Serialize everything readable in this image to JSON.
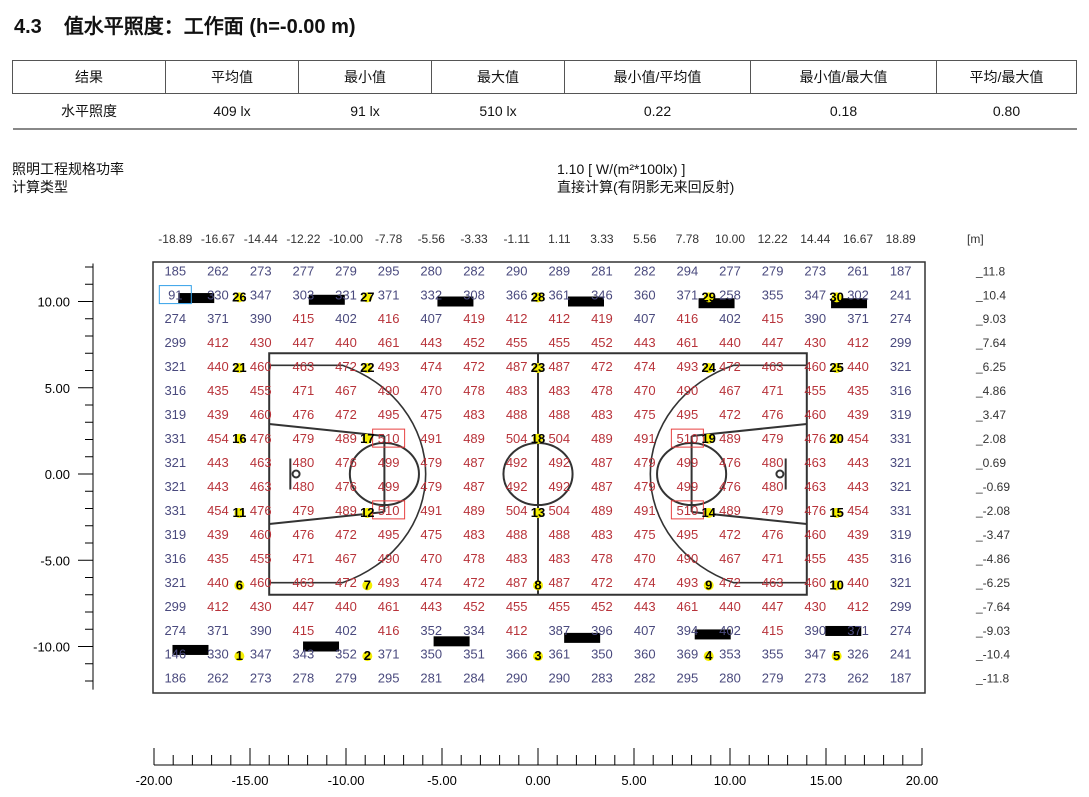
{
  "header": {
    "section": "4.3",
    "title": "值水平照度：工作面 (h=-0.00 m)"
  },
  "results": {
    "headers": [
      "结果",
      "平均值",
      "最小值",
      "最大值",
      "最小值/平均值",
      "最小值/最大值",
      "平均/最大值"
    ],
    "row": [
      "水平照度",
      "409 lx",
      "91 lx",
      "510 lx",
      "0.22",
      "0.18",
      "0.80"
    ]
  },
  "info": {
    "power_label": "照明工程规格功率",
    "power_value": "1.10 [ W/(m²*100lx) ]",
    "calc_label": "计算类型",
    "calc_value": "直接计算(有阴影无来回反射)"
  },
  "chart_data": {
    "type": "table",
    "unit": "[m]",
    "top_ticks": [
      "-18.89",
      "-16.67",
      "-14.44",
      "-12.22",
      "-10.00",
      "-7.78",
      "-5.56",
      "-3.33",
      "-1.11",
      "1.11",
      "3.33",
      "5.56",
      "7.78",
      "10.00",
      "12.22",
      "14.44",
      "16.67",
      "18.89"
    ],
    "right_ticks": [
      "11.8",
      "10.4",
      "9.03",
      "7.64",
      "6.25",
      "4.86",
      "3.47",
      "2.08",
      "0.69",
      "-0.69",
      "-2.08",
      "-3.47",
      "-4.86",
      "-6.25",
      "-7.64",
      "-9.03",
      "-10.4",
      "-11.8"
    ],
    "left_ticks": [
      "10.00",
      "5.00",
      "0.00",
      "-5.00",
      "-10.00"
    ],
    "bottom_ticks": [
      "-20.00",
      "-15.00",
      "-10.00",
      "-5.00",
      "0.00",
      "5.00",
      "10.00",
      "15.00",
      "20.00"
    ],
    "grid": [
      [
        185,
        262,
        273,
        277,
        279,
        295,
        280,
        282,
        290,
        289,
        281,
        282,
        294,
        277,
        279,
        273,
        261,
        187
      ],
      [
        91,
        330,
        347,
        303,
        331,
        371,
        332,
        308,
        366,
        361,
        346,
        360,
        371,
        258,
        355,
        347,
        302,
        241
      ],
      [
        274,
        371,
        390,
        415,
        402,
        416,
        407,
        419,
        412,
        412,
        419,
        407,
        416,
        402,
        415,
        390,
        371,
        274
      ],
      [
        299,
        412,
        430,
        447,
        440,
        461,
        443,
        452,
        455,
        455,
        452,
        443,
        461,
        440,
        447,
        430,
        412,
        299
      ],
      [
        321,
        440,
        460,
        463,
        472,
        493,
        474,
        472,
        487,
        487,
        472,
        474,
        493,
        472,
        463,
        460,
        440,
        321
      ],
      [
        316,
        435,
        455,
        471,
        467,
        490,
        470,
        478,
        483,
        483,
        478,
        470,
        490,
        467,
        471,
        455,
        435,
        316
      ],
      [
        319,
        439,
        460,
        476,
        472,
        495,
        475,
        483,
        488,
        488,
        483,
        475,
        495,
        472,
        476,
        460,
        439,
        319
      ],
      [
        331,
        454,
        476,
        479,
        489,
        510,
        491,
        489,
        504,
        504,
        489,
        491,
        510,
        489,
        479,
        476,
        454,
        331
      ],
      [
        321,
        443,
        463,
        480,
        476,
        499,
        479,
        487,
        492,
        492,
        487,
        479,
        499,
        476,
        480,
        463,
        443,
        321
      ],
      [
        321,
        443,
        463,
        480,
        476,
        499,
        479,
        487,
        492,
        492,
        487,
        479,
        499,
        476,
        480,
        463,
        443,
        321
      ],
      [
        331,
        454,
        476,
        479,
        489,
        510,
        491,
        489,
        504,
        504,
        489,
        491,
        510,
        489,
        479,
        476,
        454,
        331
      ],
      [
        319,
        439,
        460,
        476,
        472,
        495,
        475,
        483,
        488,
        488,
        483,
        475,
        495,
        472,
        476,
        460,
        439,
        319
      ],
      [
        316,
        435,
        455,
        471,
        467,
        490,
        470,
        478,
        483,
        483,
        478,
        470,
        490,
        467,
        471,
        455,
        435,
        316
      ],
      [
        321,
        440,
        460,
        463,
        472,
        493,
        474,
        472,
        487,
        487,
        472,
        474,
        493,
        472,
        463,
        460,
        440,
        321
      ],
      [
        299,
        412,
        430,
        447,
        440,
        461,
        443,
        452,
        455,
        455,
        452,
        443,
        461,
        440,
        447,
        430,
        412,
        299
      ],
      [
        274,
        371,
        390,
        415,
        402,
        416,
        352,
        334,
        412,
        387,
        396,
        407,
        394,
        402,
        415,
        390,
        371,
        274
      ],
      [
        146,
        330,
        347,
        343,
        352,
        371,
        350,
        351,
        366,
        361,
        350,
        360,
        369,
        353,
        355,
        347,
        326,
        241
      ],
      [
        186,
        262,
        273,
        278,
        279,
        295,
        281,
        284,
        290,
        290,
        283,
        282,
        295,
        280,
        279,
        273,
        262,
        187
      ]
    ],
    "min_cell": [
      1,
      0
    ],
    "max_cells": [
      [
        7,
        5
      ],
      [
        7,
        12
      ],
      [
        10,
        5
      ],
      [
        10,
        12
      ]
    ],
    "luminaires": [
      "1",
      "2",
      "3",
      "4",
      "5",
      "6",
      "7",
      "8",
      "9",
      "10",
      "11",
      "12",
      "13",
      "14",
      "15",
      "16",
      "17",
      "18",
      "19",
      "20",
      "21",
      "22",
      "23",
      "24",
      "25",
      "26",
      "27",
      "28",
      "29",
      "30"
    ],
    "colors": {
      "low": "#4a4a7e",
      "high": "#b8333a",
      "min_box": "#33a0e8",
      "max_box": "#e84040",
      "luminaire": "#f5ef00"
    }
  }
}
